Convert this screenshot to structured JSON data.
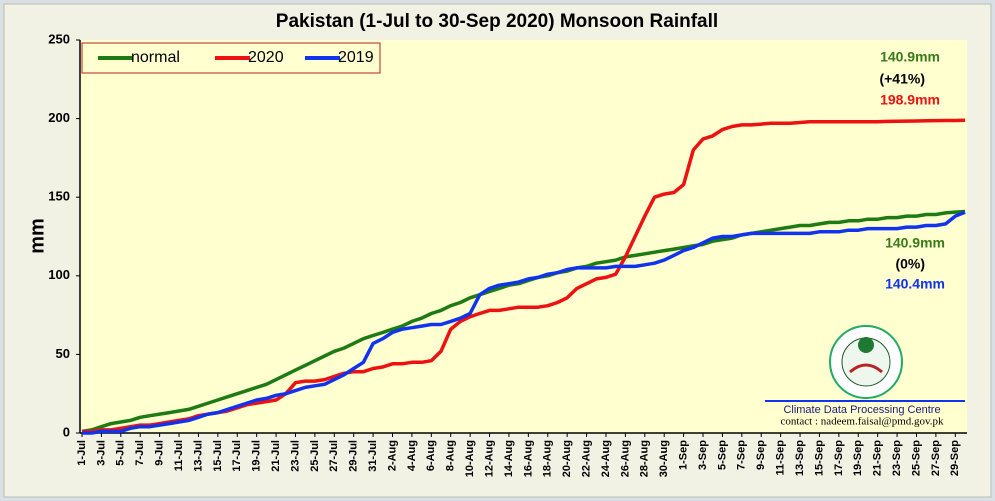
{
  "chart_data": {
    "type": "line",
    "title": "Pakistan (1-Jul to 30-Sep 2020) Monsoon Rainfall",
    "y_label": "mm",
    "ylim": [
      0,
      250
    ],
    "yticks": [
      0,
      50,
      100,
      150,
      200,
      250
    ],
    "grid": false,
    "legend": "top-left",
    "categories": [
      "1-Jul",
      null,
      "3-Jul",
      null,
      "5-Jul",
      null,
      "7-Jul",
      null,
      "9-Jul",
      null,
      "11-Jul",
      null,
      "13-Jul",
      null,
      "15-Jul",
      null,
      "17-Jul",
      null,
      "19-Jul",
      null,
      "21-Jul",
      null,
      "23-Jul",
      null,
      "25-Jul",
      null,
      "27-Jul",
      null,
      "29-Jul",
      null,
      "31-Jul",
      null,
      "2-Aug",
      null,
      "4-Aug",
      null,
      "6-Aug",
      null,
      "8-Aug",
      null,
      "10-Aug",
      null,
      "12-Aug",
      null,
      "14-Aug",
      null,
      "16-Aug",
      null,
      "18-Aug",
      null,
      "20-Aug",
      null,
      "22-Aug",
      null,
      "24-Aug",
      null,
      "26-Aug",
      null,
      "28-Aug",
      null,
      "30-Aug",
      null,
      "1-Sep",
      null,
      "3-Sep",
      null,
      "5-Sep",
      null,
      "7-Sep",
      null,
      "9-Sep",
      null,
      "11-Sep",
      null,
      "13-Sep",
      null,
      "15-Sep",
      null,
      "17-Sep",
      null,
      "19-Sep",
      null,
      "21-Sep",
      null,
      "23-Sep",
      null,
      "25-Sep",
      null,
      "27-Sep",
      null,
      "29-Sep",
      null
    ],
    "series": [
      {
        "name": "normal",
        "color": "#1e7a12",
        "values": [
          1,
          2,
          4,
          6,
          7,
          8,
          10,
          11,
          12,
          13,
          14,
          15,
          17,
          19,
          21,
          23,
          25,
          27,
          29,
          31,
          34,
          37,
          40,
          43,
          46,
          49,
          52,
          54,
          57,
          60,
          62,
          64,
          66,
          68,
          71,
          73,
          76,
          78,
          81,
          83,
          86,
          88,
          90,
          92,
          94,
          95,
          97,
          99,
          100,
          102,
          103,
          105,
          106,
          108,
          109,
          110,
          112,
          113,
          114,
          115,
          116,
          117,
          118,
          119,
          120,
          122,
          123,
          124,
          126,
          127,
          128,
          129,
          130,
          131,
          132,
          132,
          133,
          134,
          134,
          135,
          135,
          136,
          136,
          137,
          137,
          138,
          138,
          139,
          139,
          140,
          140.5,
          140.9
        ]
      },
      {
        "name": "2020",
        "color": "#ee1111",
        "values": [
          1,
          1,
          2,
          2,
          3,
          4,
          5,
          5,
          6,
          7,
          8,
          9,
          11,
          12,
          13,
          14,
          16,
          18,
          19,
          20,
          21,
          25,
          32,
          33,
          33,
          34,
          36,
          38,
          39,
          39,
          41,
          42,
          44,
          44,
          45,
          45,
          46,
          52,
          66,
          71,
          74,
          76,
          78,
          78,
          79,
          80,
          80,
          80,
          81,
          83,
          86,
          92,
          95,
          98,
          99,
          101,
          112,
          125,
          138,
          150,
          152,
          153,
          158,
          180,
          187,
          189,
          193,
          195,
          196,
          196,
          196.5,
          197,
          197,
          197,
          197.5,
          198,
          198,
          198,
          198,
          198,
          198,
          198,
          198,
          198.2,
          198.3,
          198.4,
          198.5,
          198.6,
          198.7,
          198.8,
          198.8,
          198.9
        ]
      },
      {
        "name": "2019",
        "color": "#1133ee",
        "values": [
          0,
          0,
          1,
          1,
          1,
          3,
          4,
          4,
          5,
          6,
          7,
          8,
          10,
          12,
          13,
          15,
          17,
          19,
          21,
          22,
          24,
          25,
          27,
          29,
          30,
          31,
          34,
          37,
          41,
          45,
          57,
          60,
          64,
          66,
          67,
          68,
          69,
          69,
          71,
          73,
          76,
          88,
          92,
          94,
          95,
          96,
          98,
          99,
          101,
          102,
          104,
          105,
          105,
          105,
          105,
          106,
          106,
          106,
          107,
          108,
          110,
          113,
          116,
          118,
          121,
          124,
          125,
          125,
          126,
          127,
          127,
          127,
          127,
          127,
          127,
          127,
          128,
          128,
          128,
          129,
          129,
          130,
          130,
          130,
          130,
          131,
          131,
          132,
          132,
          133,
          138,
          140.4
        ]
      }
    ],
    "annotations": [
      {
        "text": "140.9mm",
        "color": "#3a7a1a"
      },
      {
        "text": "(+41%)",
        "color": "#000000"
      },
      {
        "text": "198.9mm",
        "color": "#ee1111"
      },
      {
        "text": "140.9mm",
        "color": "#3a7a1a"
      },
      {
        "text": "(0%)",
        "color": "#000000"
      },
      {
        "text": "140.4mm",
        "color": "#1133ee"
      }
    ],
    "credit": [
      "Climate Data Processing Centre",
      "contact : nadeem.faisal@pmd.gov.pk"
    ]
  }
}
